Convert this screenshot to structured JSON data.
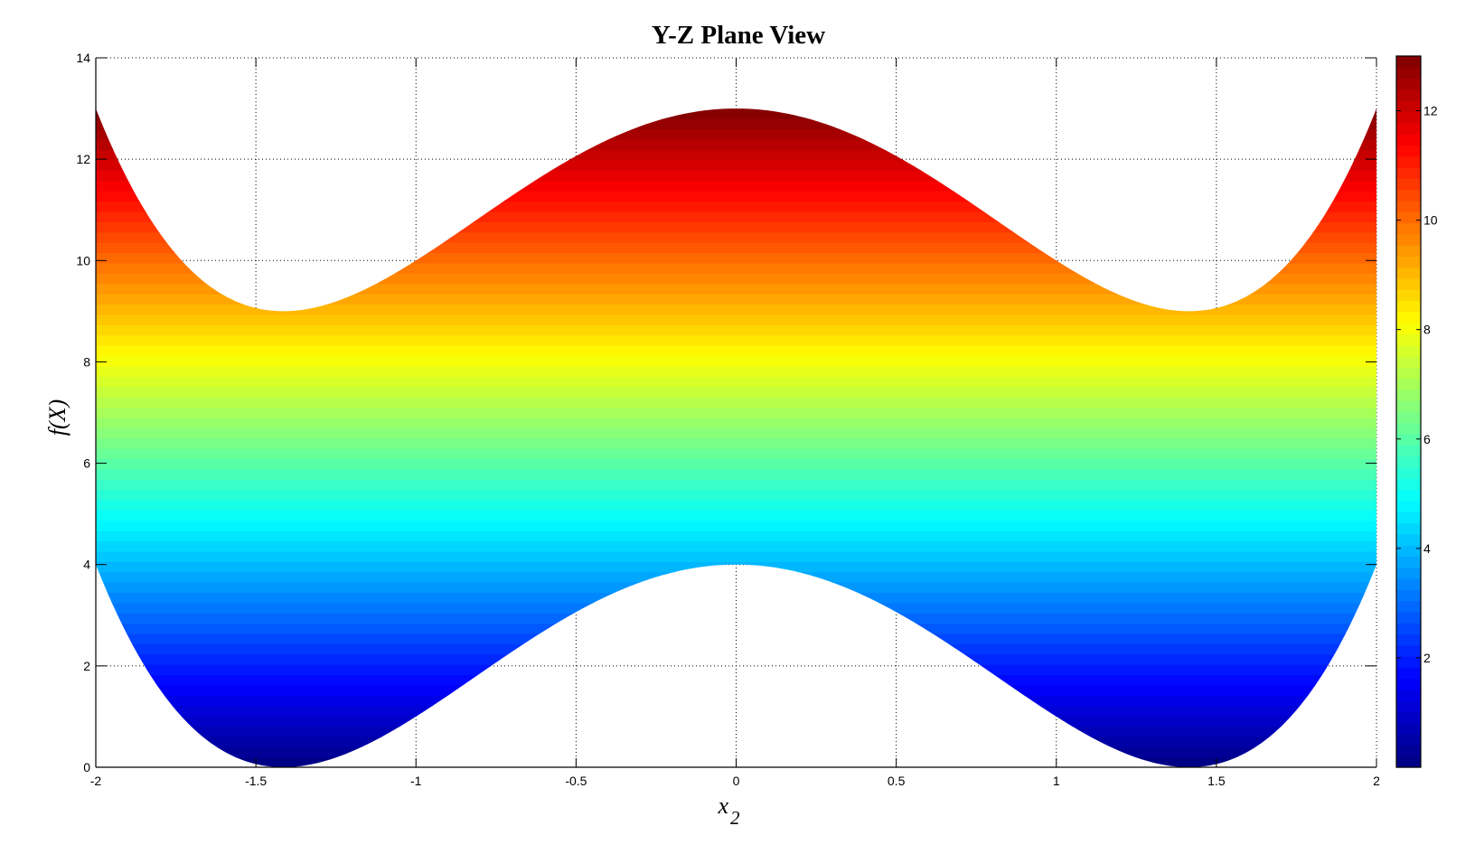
{
  "chart_data": {
    "type": "area",
    "title": "Y-Z Plane View",
    "xlabel": "x",
    "xlabel_subscript": "2",
    "ylabel": "f(X)",
    "xlim": [
      -2,
      2
    ],
    "ylim": [
      0,
      14
    ],
    "grid": true,
    "x_ticks": [
      "-2",
      "-1.5",
      "-1",
      "-0.5",
      "0",
      "0.5",
      "1",
      "1.5",
      "2"
    ],
    "y_ticks": [
      "0",
      "2",
      "4",
      "6",
      "8",
      "10",
      "12",
      "14"
    ],
    "x": [
      -2,
      -1.9,
      -1.8,
      -1.7,
      -1.6,
      -1.5,
      -1.4,
      -1.3,
      -1.2,
      -1.1,
      -1,
      -0.9,
      -0.8,
      -0.7,
      -0.6,
      -0.5,
      -0.4,
      -0.3,
      -0.2,
      -0.1,
      0,
      0.1,
      0.2,
      0.3,
      0.4,
      0.5,
      0.6,
      0.7,
      0.8,
      0.9,
      1,
      1.1,
      1.2,
      1.3,
      1.4,
      1.5,
      1.6,
      1.7,
      1.8,
      1.9,
      2
    ],
    "series": [
      {
        "role": "lower_boundary",
        "values": [
          4,
          2.72,
          1.54,
          0.79,
          0.31,
          0.06,
          0.0,
          0.09,
          0.31,
          0.62,
          1,
          1.41,
          1.85,
          2.28,
          2.69,
          3.06,
          3.38,
          3.65,
          3.84,
          3.96,
          4,
          3.96,
          3.84,
          3.65,
          3.38,
          3.06,
          2.69,
          2.28,
          1.85,
          1.41,
          1,
          0.62,
          0.31,
          0.09,
          0.0,
          0.06,
          0.31,
          0.79,
          1.54,
          2.72,
          4
        ]
      },
      {
        "role": "upper_boundary",
        "values": [
          13,
          11.72,
          10.54,
          9.79,
          9.31,
          9.06,
          9.0,
          9.09,
          9.31,
          9.62,
          10,
          10.41,
          10.85,
          11.28,
          11.69,
          12.06,
          12.38,
          12.65,
          12.84,
          12.96,
          13,
          12.96,
          12.84,
          12.65,
          12.38,
          12.06,
          11.69,
          11.28,
          10.85,
          10.41,
          10,
          9.62,
          9.31,
          9.09,
          9.0,
          9.06,
          9.31,
          9.79,
          10.54,
          11.72,
          13
        ]
      }
    ],
    "colormap": "jet",
    "colorbar": {
      "range": [
        0,
        13
      ],
      "ticks": [
        "2",
        "4",
        "6",
        "8",
        "10",
        "12"
      ],
      "placement": "right"
    }
  }
}
